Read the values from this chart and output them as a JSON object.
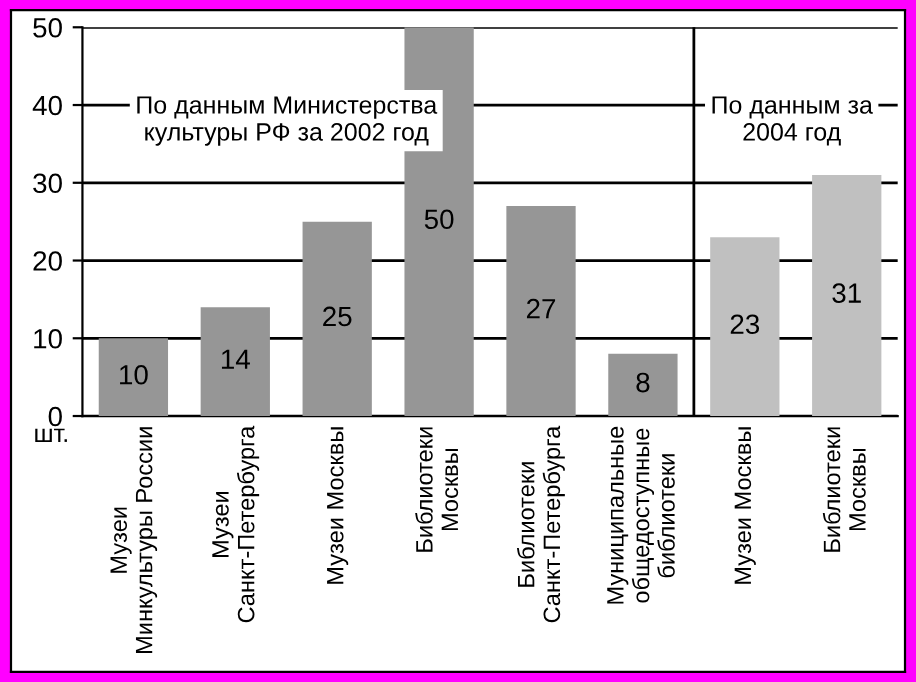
{
  "chart_data": {
    "type": "bar",
    "categories": [
      "Музеи Минкультуры России",
      "Музеи Санкт-Петербурга",
      "Музеи Москвы",
      "Библиотеки Москвы",
      "Библиотеки Санкт-Петербурга",
      "Муниципальные общедоступные библиотеки",
      "Музеи Москвы",
      "Библиотеки Москвы"
    ],
    "values": [
      10,
      14,
      25,
      50,
      27,
      8,
      23,
      31
    ],
    "colors": [
      "#969696",
      "#969696",
      "#969696",
      "#969696",
      "#969696",
      "#969696",
      "#c0c0c0",
      "#c0c0c0"
    ],
    "ylabel": "шт.",
    "ylim": [
      0,
      50
    ],
    "yticks": [
      0,
      10,
      20,
      30,
      40,
      50
    ],
    "grid": "y",
    "data_labels": true,
    "annotations": [
      "По данным Министерства культуры РФ за 2002 год",
      "По данным за 2004 год"
    ]
  }
}
